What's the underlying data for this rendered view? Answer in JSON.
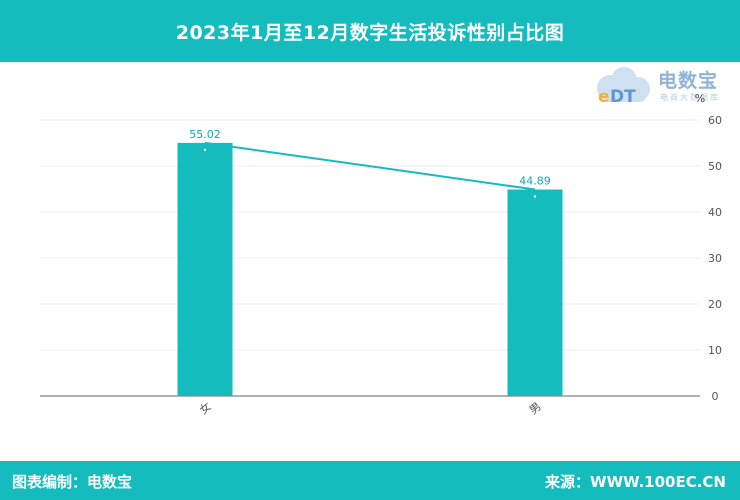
{
  "header": {
    "title": "2023年1月至12月数字生活投诉性别占比图"
  },
  "logo": {
    "brand": "电数宝",
    "sub": "电商大数据库"
  },
  "footer": {
    "left": "图表编制：电数宝",
    "right": "来源：WWW.100EC.CN"
  },
  "colors": {
    "bar": "#14bcbd",
    "line": "#14bcbd",
    "header": "#14bcbd",
    "label": "#14a9b0"
  },
  "chart_data": {
    "type": "bar",
    "categories": [
      "女",
      "男"
    ],
    "values": [
      55.02,
      44.89
    ],
    "overlay": "line",
    "y_unit": "%",
    "ylim": [
      0,
      60
    ],
    "yticks": [
      0,
      10,
      20,
      30,
      40,
      50,
      60
    ],
    "y_axis_position": "right",
    "grid": true
  }
}
